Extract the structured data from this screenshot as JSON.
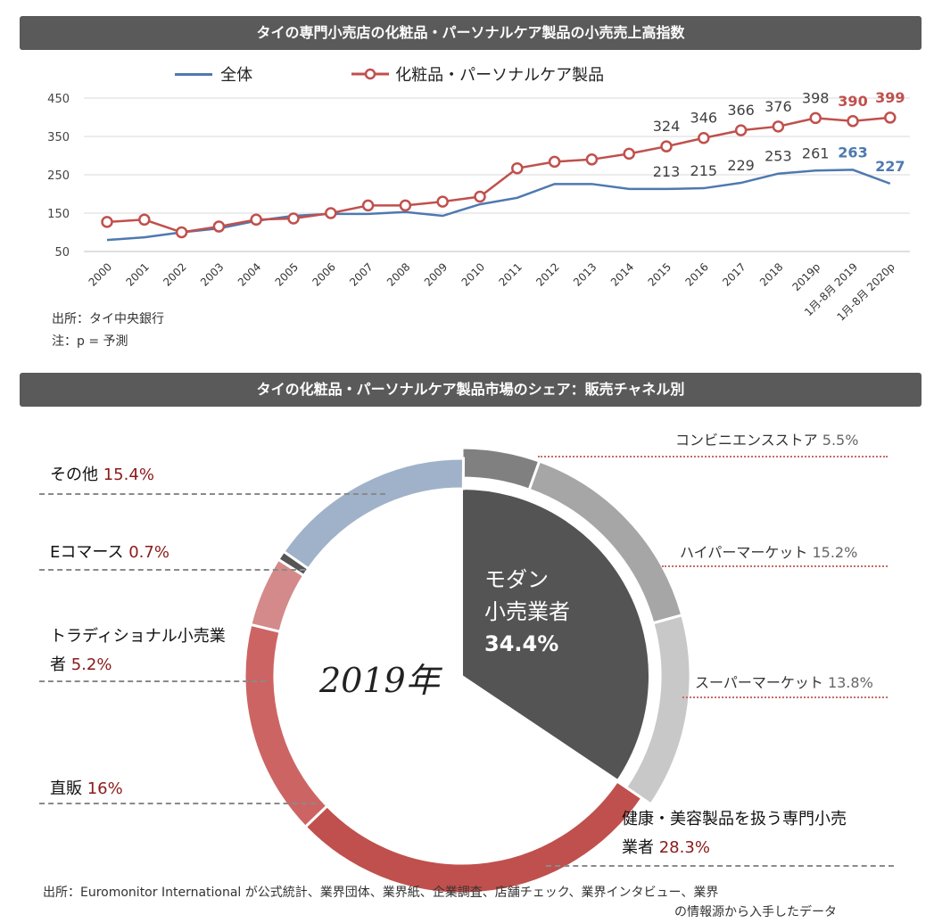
{
  "line_chart_title": "タイの専門小売店の化粧品・パーソナルケア製品の小売売上高指数",
  "line_source": "出所：タイ中央銀行",
  "line_note": "注：p = 予測",
  "donut_title": "タイの化粧品・パーソナルケア製品市場のシェア：販売チャネル別",
  "donut_center_label": "2019年",
  "modern_label_line1": "モダン",
  "modern_label_line2": "小売業者",
  "modern_pct": "34.4%",
  "bottom_source_line1": "出所：Euromonitor International が公式統計、業界団体、業界紙、企業調査、店舗チェック、業界インタビュー、業界",
  "bottom_source_line2": "の情報源から入手したデータ",
  "colors": {
    "total": "#4e79b0",
    "cosmetics": "#c0504d",
    "header": "#5a5a5a"
  },
  "chart_data": [
    {
      "type": "line",
      "title": "タイの専門小売店の化粧品・パーソナルケア製品の小売売上高指数",
      "x": [
        "2000",
        "2001",
        "2002",
        "2003",
        "2004",
        "2005",
        "2006",
        "2007",
        "2008",
        "2009",
        "2010",
        "2011",
        "2012",
        "2013",
        "2014",
        "2015",
        "2016",
        "2017",
        "2018",
        "2019p",
        "1月-8月 2019",
        "1月-8月 2020p"
      ],
      "ylim": [
        50,
        450
      ],
      "yticks": [
        50,
        150,
        250,
        350,
        450
      ],
      "grid": true,
      "legend": "top",
      "series": [
        {
          "name": "全体",
          "color": "#4e79b0",
          "values": [
            80,
            87,
            100,
            110,
            130,
            143,
            148,
            148,
            153,
            143,
            173,
            190,
            226,
            226,
            213,
            213,
            215,
            229,
            253,
            261,
            263,
            227
          ],
          "labels": [
            {
              "i": 15,
              "text": "213"
            },
            {
              "i": 16,
              "text": "215"
            },
            {
              "i": 17,
              "text": "229"
            },
            {
              "i": 18,
              "text": "253"
            },
            {
              "i": 19,
              "text": "261"
            },
            {
              "i": 20,
              "text": "263"
            },
            {
              "i": 21,
              "text": "227"
            }
          ]
        },
        {
          "name": "化粧品・パーソナルケア製品",
          "color": "#c0504d",
          "values": [
            127,
            133,
            100,
            115,
            133,
            136,
            150,
            170,
            170,
            180,
            193,
            267,
            284,
            290,
            305,
            324,
            346,
            366,
            376,
            398,
            390,
            399
          ],
          "labels": [
            {
              "i": 15,
              "text": "324"
            },
            {
              "i": 16,
              "text": "346"
            },
            {
              "i": 17,
              "text": "366"
            },
            {
              "i": 18,
              "text": "376"
            },
            {
              "i": 19,
              "text": "398"
            },
            {
              "i": 20,
              "text": "390"
            },
            {
              "i": 21,
              "text": "399"
            }
          ]
        }
      ]
    },
    {
      "type": "pie",
      "title": "タイの化粧品・パーソナルケア製品市場のシェア：販売チャネル別",
      "inner": {
        "label": "モダン小売業者",
        "value": 34.4
      },
      "slices": [
        {
          "label": "コンビニエンスストア",
          "value": 5.5,
          "display": "5.5%",
          "color": "#808080"
        },
        {
          "label": "ハイパーマーケット",
          "value": 15.2,
          "display": "15.2%",
          "color": "#a6a6a6"
        },
        {
          "label": "スーパーマーケット",
          "value": 13.8,
          "display": "13.8%",
          "color": "#c8c8c8"
        },
        {
          "label": "健康・美容製品を扱う専門小売業者",
          "value": 28.3,
          "display": "28.3%",
          "color": "#c0504d"
        },
        {
          "label": "直販",
          "value": 16,
          "display": "16%",
          "color": "#cd6464"
        },
        {
          "label": "トラディショナル小売業者",
          "value": 5.2,
          "display": "5.2%",
          "color": "#d48a8a"
        },
        {
          "label": "Eコマース",
          "value": 0.7,
          "display": "0.7%",
          "color": "#555555"
        },
        {
          "label": "その他",
          "value": 15.4,
          "display": "15.4%",
          "color": "#9fb2c9"
        }
      ]
    }
  ]
}
